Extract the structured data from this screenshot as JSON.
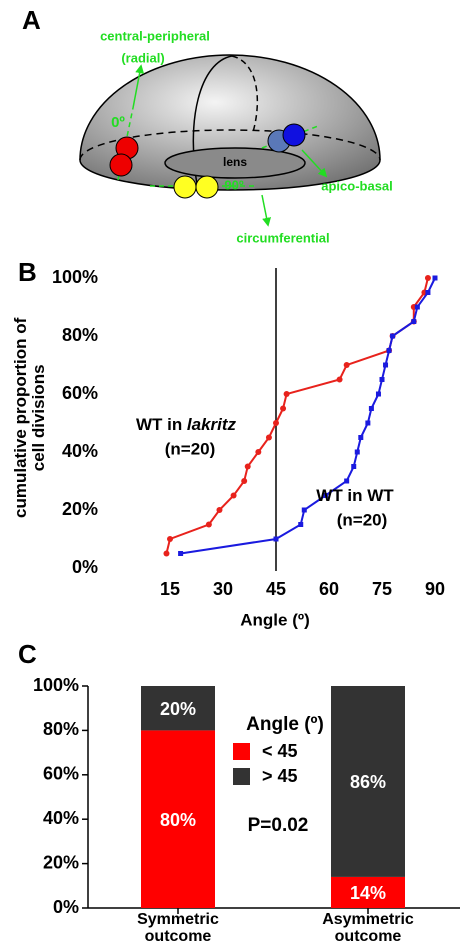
{
  "panels": [
    "A",
    "B",
    "C"
  ],
  "diagram": {
    "axis_radial": [
      "central-peripheral",
      "(radial)"
    ],
    "angle_0": "0º",
    "lens": "lens",
    "angle_90": "90º",
    "axis_apico_basal": "apico-basal",
    "axis_circumferential": "circumferential"
  },
  "chart_data": [
    {
      "type": "line",
      "xlabel": "Angle (º)",
      "ylabel": "cumulative proportion of cell divisions",
      "xlim": [
        0,
        90
      ],
      "ylim": [
        0,
        100
      ],
      "xticks": [
        15,
        30,
        45,
        60,
        75,
        90
      ],
      "yticks": [
        {
          "value": 0,
          "label": "0%"
        },
        {
          "value": 20,
          "label": "20%"
        },
        {
          "value": 40,
          "label": "40%"
        },
        {
          "value": 60,
          "label": "60%"
        },
        {
          "value": 80,
          "label": "80%"
        },
        {
          "value": 100,
          "label": "100%"
        }
      ],
      "grid": false,
      "vline": 45,
      "series": [
        {
          "label": [
            {
              "text": "WT in "
            },
            {
              "text": "lakritz",
              "italic": true
            }
          ],
          "n": "(n=20)",
          "color": "#e8221c",
          "marker": "circle",
          "x": [
            14,
            15,
            26,
            29,
            33,
            36,
            37,
            40,
            43,
            45,
            47,
            48,
            63,
            65,
            77,
            78,
            84,
            84,
            87,
            88
          ],
          "values": [
            5,
            10,
            15,
            20,
            25,
            30,
            35,
            40,
            45,
            50,
            55,
            60,
            65,
            70,
            75,
            80,
            85,
            90,
            95,
            100
          ]
        },
        {
          "label": [
            {
              "text": "WT in WT"
            }
          ],
          "n": "(n=20)",
          "color": "#1a1adf",
          "marker": "square",
          "x": [
            18,
            45,
            52,
            53,
            59,
            65,
            67,
            68,
            69,
            71,
            72,
            74,
            75,
            76,
            77,
            78,
            84,
            85,
            88,
            90
          ],
          "values": [
            5,
            10,
            15,
            20,
            25,
            30,
            35,
            40,
            45,
            50,
            55,
            60,
            65,
            70,
            75,
            80,
            85,
            90,
            95,
            100
          ]
        }
      ]
    },
    {
      "type": "bar",
      "stacked": true,
      "categories": [
        "Symmetric outcome",
        "Asymmetric outcome"
      ],
      "ylim": [
        0,
        100
      ],
      "yticks": [
        {
          "value": 0,
          "label": "0%"
        },
        {
          "value": 20,
          "label": "20%"
        },
        {
          "value": 40,
          "label": "40%"
        },
        {
          "value": 60,
          "label": "60%"
        },
        {
          "value": 80,
          "label": "80%"
        },
        {
          "value": 100,
          "label": "100%"
        }
      ],
      "legend_title": "Angle (º)",
      "annotation": "P=0.02",
      "series": [
        {
          "name": "< 45",
          "color": "#ff0000",
          "values": [
            80,
            14
          ],
          "value_labels": [
            "80%",
            "14%"
          ]
        },
        {
          "name": "> 45",
          "color": "#333333",
          "values": [
            20,
            86
          ],
          "value_labels": [
            "20%",
            "86%"
          ]
        }
      ]
    }
  ]
}
